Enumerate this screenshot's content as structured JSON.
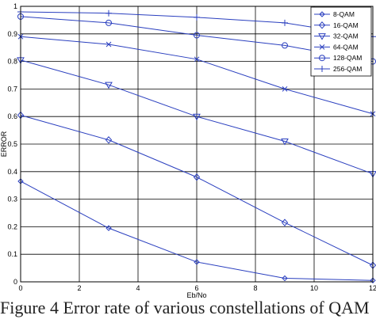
{
  "caption": "Figure 4 Error rate of various constellations of QAM",
  "chart_data": {
    "type": "line",
    "title": "",
    "xlabel": "Eb/No",
    "ylabel": "ERROR",
    "xlim": [
      0,
      12
    ],
    "ylim": [
      0,
      1
    ],
    "xticks": [
      "0",
      "2",
      "4",
      "6",
      "8",
      "10",
      "12"
    ],
    "yticks": [
      "0",
      "0.1",
      "0.2",
      "0.3",
      "0.4",
      "0.5",
      "0.6",
      "0.7",
      "0.8",
      "0.9",
      "1"
    ],
    "grid": true,
    "legend_position": "top-right",
    "line_color": "#2a3fbf",
    "x": [
      0,
      3,
      6,
      9,
      12
    ],
    "series": [
      {
        "name": "8-QAM",
        "marker": "diamond-small",
        "values": [
          0.365,
          0.195,
          0.072,
          0.013,
          0.005
        ]
      },
      {
        "name": "16-QAM",
        "marker": "diamond",
        "values": [
          0.605,
          0.515,
          0.38,
          0.215,
          0.06
        ]
      },
      {
        "name": "32-QAM",
        "marker": "triangle-down",
        "values": [
          0.805,
          0.715,
          0.6,
          0.51,
          0.392
        ]
      },
      {
        "name": "64-QAM",
        "marker": "x",
        "values": [
          0.89,
          0.862,
          0.808,
          0.7,
          0.61
        ]
      },
      {
        "name": "128-QAM",
        "marker": "circle",
        "values": [
          0.963,
          0.94,
          0.895,
          0.858,
          0.8
        ]
      },
      {
        "name": "256-QAM",
        "marker": "plus",
        "values": [
          0.98,
          0.975,
          0.96,
          0.94,
          0.89
        ]
      }
    ]
  }
}
